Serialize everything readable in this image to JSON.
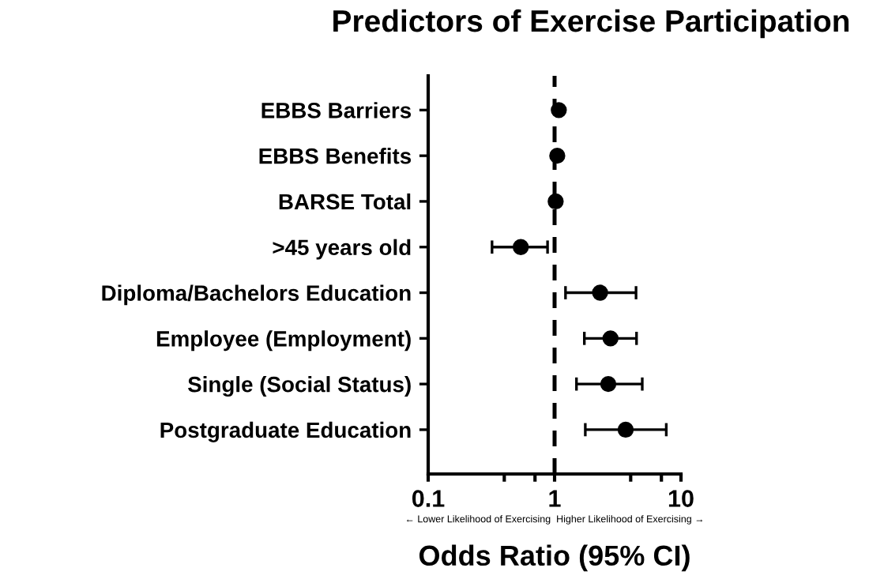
{
  "chart_data": {
    "type": "scatter",
    "orientation": "horizontal",
    "title": "Predictors of Exercise Participation",
    "xlabel": "Odds Ratio (95% CI)",
    "categories": [
      "EBBS Barriers",
      "EBBS Benefits",
      "BARSE Total",
      ">45 years old",
      "Diploma/Bachelors Education",
      "Employee (Employment)",
      "Single (Social Status)",
      "Postgraduate Education"
    ],
    "series": [
      {
        "color": "#000000",
        "values": [
          1.08,
          1.05,
          1.02,
          0.54,
          2.29,
          2.77,
          2.66,
          3.65
        ],
        "errors": [
          null,
          null,
          null,
          [
            0.32,
            0.88
          ],
          [
            1.22,
            4.41
          ],
          [
            1.72,
            4.45
          ],
          [
            1.49,
            4.94
          ],
          [
            1.75,
            7.65
          ]
        ]
      }
    ],
    "log": "x",
    "xlim": [
      0.1,
      10
    ],
    "xticks": [
      0.1,
      {
        "value": 0.4,
        "label": null
      },
      {
        "value": 0.7,
        "label": null
      },
      1,
      {
        "value": 4,
        "label": null
      },
      {
        "value": 7,
        "label": null
      },
      10
    ],
    "ref_lines": [
      {
        "axis": "x",
        "value": 1,
        "color": "#000000",
        "line_style": "dashed"
      }
    ],
    "annotations": [
      "← Lower Likelihood of Exercising  Higher Likelihood of Exercising →"
    ],
    "marker": "circle",
    "grid": false,
    "legend": false
  }
}
